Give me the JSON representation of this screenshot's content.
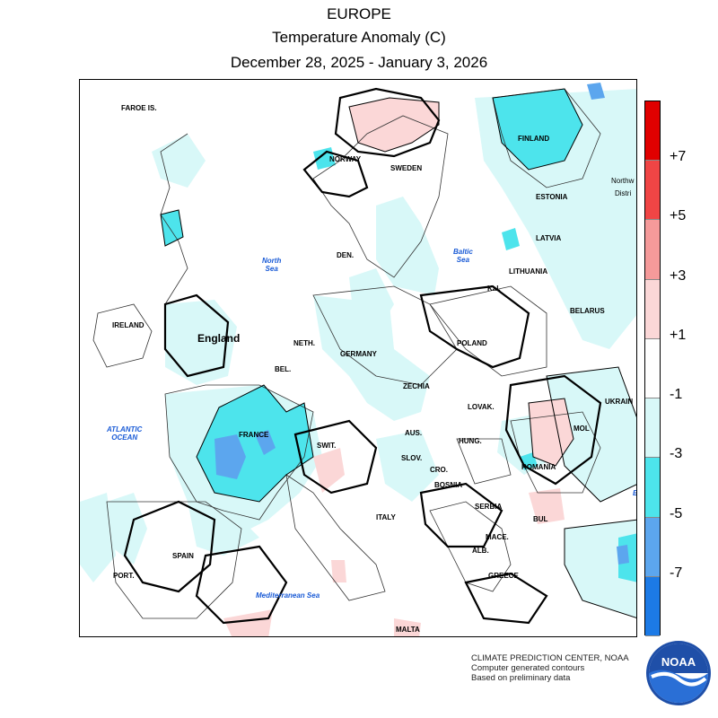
{
  "header": {
    "region": "EUROPE",
    "variable": "Temperature Anomaly (C)",
    "period": "December 28, 2025 - January 3, 2026"
  },
  "legend": {
    "colors": [
      "#e00000",
      "#f04545",
      "#f59a9a",
      "#fbd7d7",
      "#ffffff",
      "#d8f8f8",
      "#4de4ec",
      "#5ca6ee",
      "#1c7ae6"
    ],
    "labels": [
      "+7",
      "+5",
      "+3",
      "+1",
      "-1",
      "-3",
      "-5",
      "-7"
    ]
  },
  "map": {
    "labels": {
      "faroe": "FAROE IS.",
      "finland": "FINLAND",
      "norway": "NORWAY",
      "sweden": "SWEDEN",
      "estonia": "ESTONIA",
      "northwest": "Northw",
      "district": "Distri",
      "latvia": "LATVIA",
      "north_sea": "North\nSea",
      "den": "DEN.",
      "baltic_sea": "Baltic\nSea",
      "lithuania": "LITHUANIA",
      "kal": "Kal.",
      "belarus": "BELARUS",
      "ireland": "IRELAND",
      "england": "England",
      "neth": "NETH.",
      "germany": "GERMANY",
      "poland": "POLAND",
      "bel": "BEL.",
      "czechia": "ZECHIA",
      "ukraine": "UKRAIN",
      "slovak": "LOVAK.",
      "atlantic": "ATLANTIC\nOCEAN",
      "france": "FRANCE",
      "aus": "AUS.",
      "hung": "HUNG.",
      "mol": "MOL",
      "switz": "SWIT.",
      "slov": "SLOV.",
      "romania": "ROMANIA",
      "cro": "CRO.",
      "bosnia": "BOSNIA",
      "serbia": "SERBIA",
      "bul": "BUL",
      "italy": "ITALY",
      "spain": "SPAIN",
      "port": "PORT.",
      "mace": "MACE.",
      "alb": "ALB.",
      "greece": "GREECE",
      "med_sea": "Mediterranean Sea",
      "malta": "MALTA",
      "b_partial": "B"
    }
  },
  "credit": {
    "line1": "CLIMATE PREDICTION CENTER, NOAA",
    "line2": "Computer generated contours",
    "line3": "Based on preliminary data"
  },
  "logo": {
    "text": "NOAA"
  }
}
